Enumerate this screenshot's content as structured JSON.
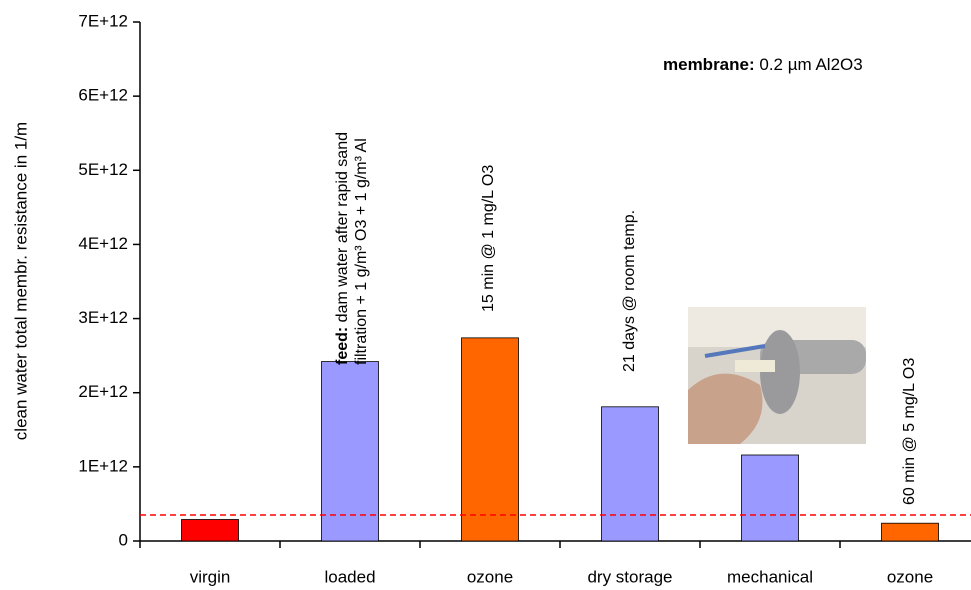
{
  "chart_data": {
    "type": "bar",
    "y_label": "clean water total membr. resistance in 1/m",
    "categories": [
      "virgin",
      "loaded",
      "ozone",
      "dry storage",
      "mechanical",
      "ozone"
    ],
    "values": [
      290000000000.0,
      2420000000000.0,
      2740000000000.0,
      1810000000000.0,
      1160000000000.0,
      240000000000.0
    ],
    "colors": [
      "#ff0000",
      "#9999ff",
      "#ff6600",
      "#9999ff",
      "#9999ff",
      "#ff6600"
    ],
    "ylim": [
      0,
      7000000000000.0
    ],
    "yticks": [
      0,
      {
        "value": 1000000000000.0,
        "label": "1E+12"
      },
      {
        "value": 2000000000000.0,
        "label": "2E+12"
      },
      {
        "value": 3000000000000.0,
        "label": "3E+12"
      },
      {
        "value": 4000000000000.0,
        "label": "4E+12"
      },
      {
        "value": 5000000000000.0,
        "label": "5E+12"
      },
      {
        "value": 6000000000000.0,
        "label": "6E+12"
      },
      {
        "value": 7000000000000.0,
        "label": "7E+12"
      }
    ],
    "reference_line": {
      "value": 350000000000.0,
      "color": "#ff0000"
    },
    "annotations": [
      {
        "bold": "feed:",
        "lines": [
          "dam water after rapid sand",
          "filtration + 1 g/m³ O3 + 1 g/m³ Al"
        ]
      },
      {
        "lines": [
          "15 min @ 1 mg/L O3"
        ]
      },
      {
        "lines": [
          "21 days @ room temp."
        ]
      },
      {
        "lines": [
          "60 min @ 5 mg/L O3"
        ]
      }
    ],
    "note": {
      "bold": "membrane:",
      "text": "0.2 µm Al2O3"
    }
  }
}
